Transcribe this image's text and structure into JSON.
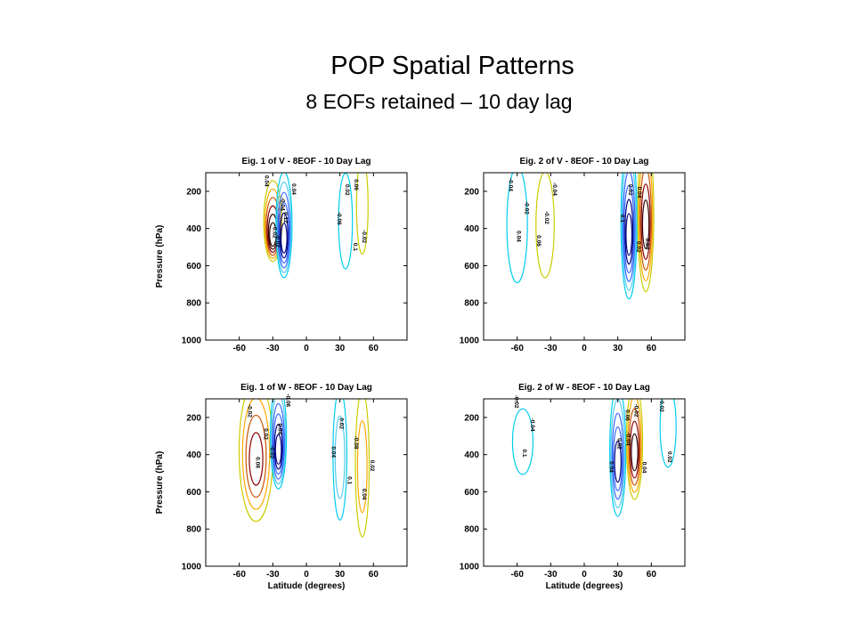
{
  "title": "POP Spatial Patterns",
  "subtitle": "8 EOFs retained – 10 day lag",
  "colors": [
    "#00ccee",
    "#55ccf0",
    "#3366ff",
    "#000080",
    "#330000",
    "#8b0000",
    "#cc5500",
    "#ffaa00",
    "#cccc00"
  ],
  "chart_data": [
    {
      "type": "contour",
      "title": "Eig. 1 of V - 8EOF - 10 Day Lag",
      "xlabel": "",
      "ylabel": "Pressure (hPa)",
      "xlim": [
        -90,
        90
      ],
      "ylim": [
        1000,
        100
      ],
      "grid": false,
      "xticks": [
        "-60",
        "-30",
        "0",
        "30",
        "60"
      ],
      "yticks": [
        "200",
        "400",
        "600",
        "800",
        "1000"
      ],
      "contour_labels": [
        "0.04",
        "0.12",
        "0.1",
        "0.06",
        "0.02",
        "0.04",
        "-0.06",
        "-0.02",
        "-0.04",
        "-0.02",
        "0.02"
      ],
      "blobs": [
        {
          "x": -30,
          "p": 360,
          "w": 7,
          "h": 150,
          "sign": 1,
          "levels": 6
        },
        {
          "x": -20,
          "p": 380,
          "w": 6,
          "h": 200,
          "sign": -1,
          "levels": 6
        },
        {
          "x": 35,
          "p": 360,
          "w": 5,
          "h": 180,
          "sign": -1,
          "levels": 1
        },
        {
          "x": 50,
          "p": 280,
          "w": 4,
          "h": 180,
          "sign": 1,
          "levels": 1
        }
      ]
    },
    {
      "type": "contour",
      "title": "Eig. 2 of V - 8EOF - 10 Day Lag",
      "xlabel": "",
      "ylabel": "",
      "xlim": [
        -90,
        90
      ],
      "ylim": [
        1000,
        100
      ],
      "grid": false,
      "xticks": [
        "-60",
        "-30",
        "0",
        "30",
        "60"
      ],
      "yticks": [
        "200",
        "400",
        "600",
        "800",
        "1000"
      ],
      "contour_labels": [
        "-0.04",
        "-0.02",
        "0.02",
        "0.04",
        "0.04",
        "-0.04",
        "0.1",
        "0.04",
        "-0.02",
        "0.06",
        "0.02"
      ],
      "blobs": [
        {
          "x": -60,
          "p": 380,
          "w": 8,
          "h": 220,
          "sign": -1,
          "levels": 1
        },
        {
          "x": -35,
          "p": 380,
          "w": 7,
          "h": 200,
          "sign": 1,
          "levels": 1
        },
        {
          "x": 40,
          "p": 360,
          "w": 6,
          "h": 300,
          "sign": -1,
          "levels": 6
        },
        {
          "x": 55,
          "p": 320,
          "w": 6,
          "h": 300,
          "sign": 1,
          "levels": 5
        }
      ]
    },
    {
      "type": "contour",
      "title": "Eig. 1 of W - 8EOF - 10 Day Lag",
      "xlabel": "Latitude (degrees)",
      "ylabel": "Pressure (hPa)",
      "xlim": [
        -90,
        90
      ],
      "ylim": [
        1000,
        100
      ],
      "grid": false,
      "xticks": [
        "-60",
        "-30",
        "0",
        "30",
        "60"
      ],
      "yticks": [
        "200",
        "400",
        "600",
        "800",
        "1000"
      ],
      "contour_labels": [
        "-0.02",
        "0.04",
        "0.1",
        "-0.08",
        "0.08",
        "-0.06",
        "0.04",
        "0.04",
        "0.02",
        "-0.02",
        "0.02",
        "0.02"
      ],
      "blobs": [
        {
          "x": -45,
          "p": 380,
          "w": 14,
          "h": 270,
          "sign": 1,
          "levels": 4
        },
        {
          "x": -25,
          "p": 300,
          "w": 6,
          "h": 200,
          "sign": -1,
          "levels": 6
        },
        {
          "x": 30,
          "p": 400,
          "w": 5,
          "h": 250,
          "sign": -1,
          "levels": 2
        },
        {
          "x": 50,
          "p": 450,
          "w": 5,
          "h": 280,
          "sign": 1,
          "levels": 2
        }
      ]
    },
    {
      "type": "contour",
      "title": "Eig. 2 of W - 8EOF - 10 Day Lag",
      "xlabel": "Latitude (degrees)",
      "ylabel": "",
      "xlim": [
        -90,
        90
      ],
      "ylim": [
        1000,
        100
      ],
      "grid": false,
      "xticks": [
        "-60",
        "-30",
        "0",
        "30",
        "60"
      ],
      "yticks": [
        "200",
        "400",
        "600",
        "800",
        "1000"
      ],
      "contour_labels": [
        "-0.02",
        "0.02",
        "0.04",
        "-0.02",
        "0.1",
        "0.06",
        "-0.04",
        "0.02",
        "-0.04",
        "0.04",
        "-0.02"
      ],
      "blobs": [
        {
          "x": -55,
          "p": 330,
          "w": 8,
          "h": 120,
          "sign": -1,
          "levels": 1
        },
        {
          "x": 30,
          "p": 380,
          "w": 6,
          "h": 250,
          "sign": -1,
          "levels": 5
        },
        {
          "x": 45,
          "p": 330,
          "w": 6,
          "h": 220,
          "sign": 1,
          "levels": 5
        },
        {
          "x": 75,
          "p": 250,
          "w": 6,
          "h": 150,
          "sign": -1,
          "levels": 1
        }
      ]
    }
  ]
}
